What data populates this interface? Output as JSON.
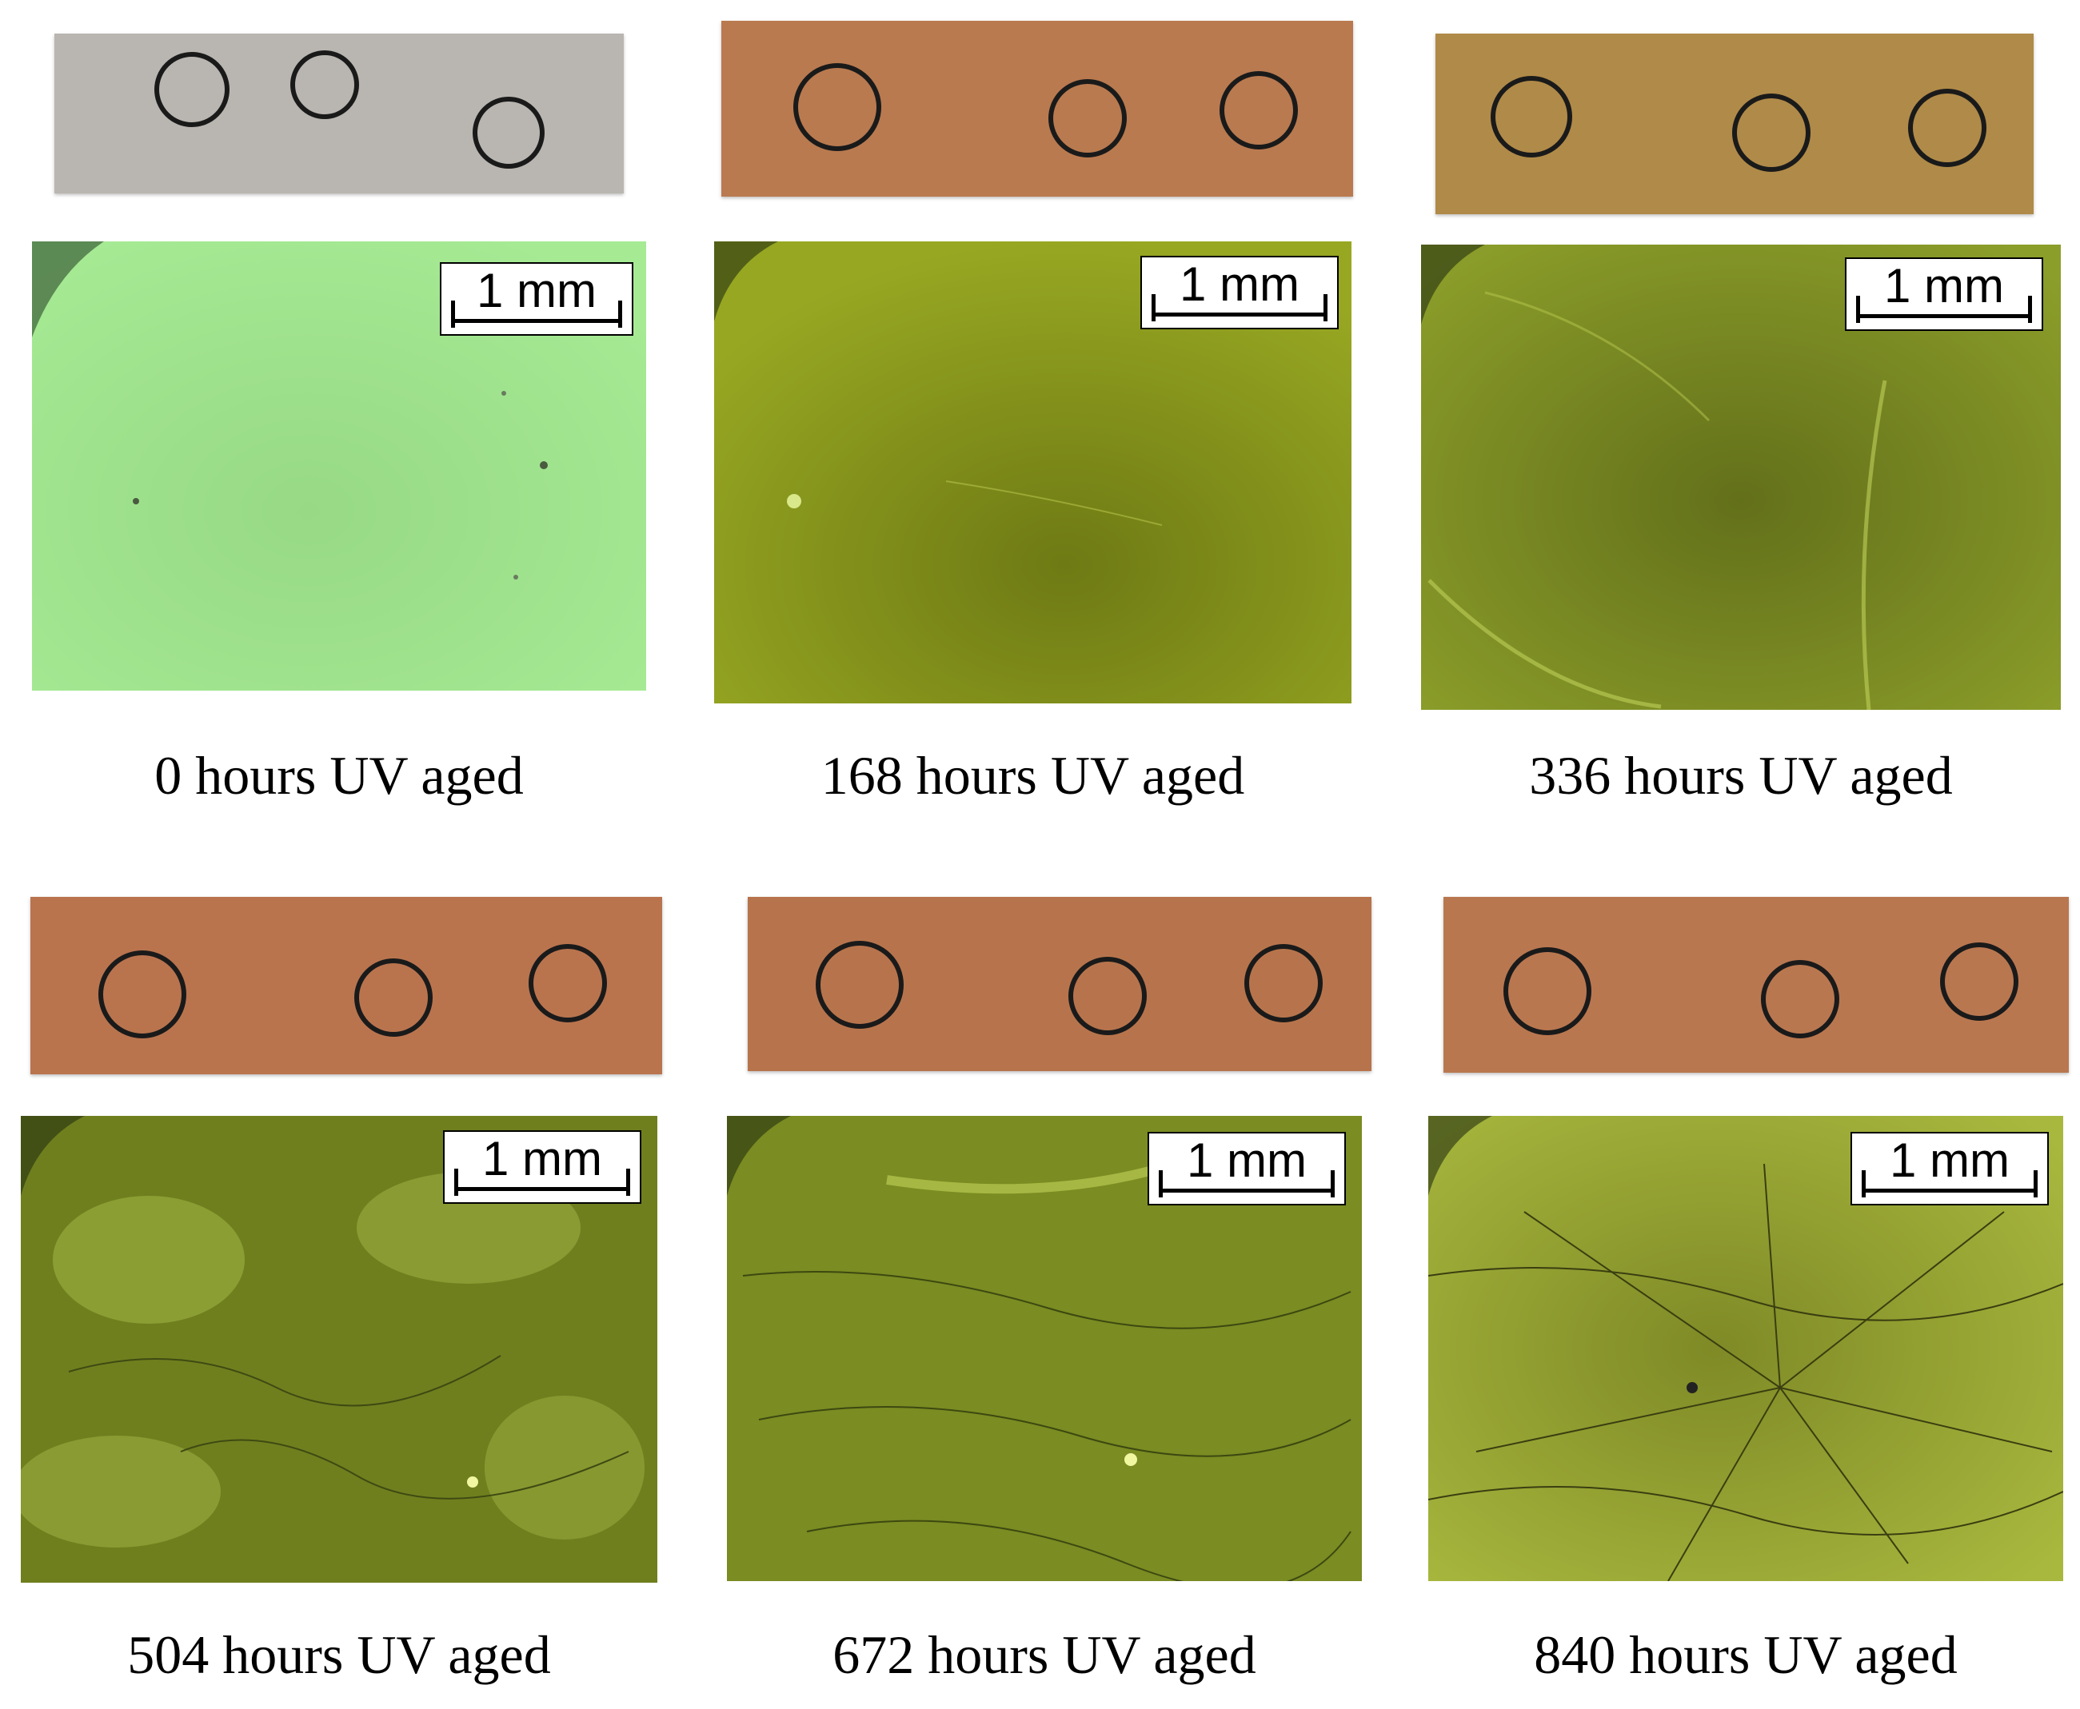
{
  "panels": [
    {
      "caption": "0 hours UV aged",
      "scale_label": "1 mm",
      "strip_color": "#b7b3ad",
      "micro_color": "#9ee28c",
      "strip_marks": [
        "3",
        "2",
        "1"
      ]
    },
    {
      "caption": "168 hours UV aged",
      "scale_label": "1 mm",
      "strip_color": "#b87a4e",
      "micro_color": "#8a9a1c",
      "strip_marks": [
        "3",
        "2",
        "1"
      ]
    },
    {
      "caption": "336 hours UV aged",
      "scale_label": "1 mm",
      "strip_color": "#b08a48",
      "micro_color": "#7c8c20",
      "strip_marks": [
        "3",
        "2",
        "1"
      ]
    },
    {
      "caption": "504 hours UV aged",
      "scale_label": "1 mm",
      "strip_color": "#b9744e",
      "micro_color": "#7f9326",
      "strip_marks": [
        "3",
        "2",
        "1"
      ]
    },
    {
      "caption": "672 hours UV aged",
      "scale_label": "1 mm",
      "strip_color": "#b7744c",
      "micro_color": "#869a28",
      "strip_marks": [
        "3",
        "2",
        "1"
      ]
    },
    {
      "caption": "840 hours UV aged",
      "scale_label": "1 mm",
      "strip_color": "#b97750",
      "micro_color": "#8c9a2c",
      "strip_marks": [
        "3",
        "2",
        "1"
      ]
    }
  ]
}
